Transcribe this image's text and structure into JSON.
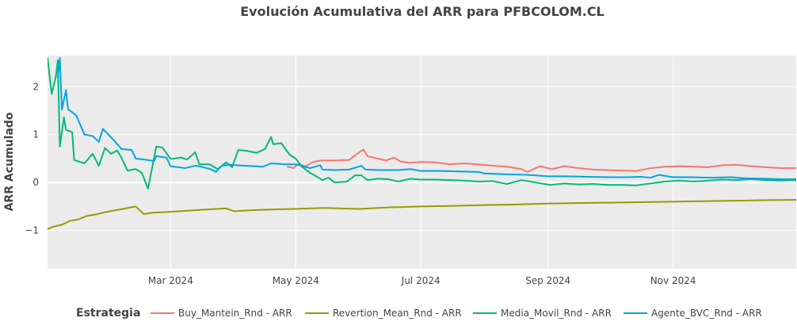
{
  "chart_data": {
    "type": "line",
    "title": "Evolución Acumulativa del ARR para PFBCOLOM.CL",
    "xlabel": "",
    "ylabel": "ARR Acumulado",
    "x_range": [
      "2024-01-01",
      "2024-12-31"
    ],
    "ylim": [
      -1.8,
      2.65
    ],
    "x_ticks": [
      {
        "date": "2024-03-01",
        "label": "Mar 2024"
      },
      {
        "date": "2024-05-01",
        "label": "May 2024"
      },
      {
        "date": "2024-07-01",
        "label": "Jul 2024"
      },
      {
        "date": "2024-09-01",
        "label": "Sep 2024"
      },
      {
        "date": "2024-11-01",
        "label": "Nov 2024"
      }
    ],
    "y_ticks": [
      {
        "value": -1,
        "label": "−1"
      },
      {
        "value": 0,
        "label": "0"
      },
      {
        "value": 1,
        "label": "1"
      },
      {
        "value": 2,
        "label": "2"
      }
    ],
    "grid": true,
    "background": "#ebebeb",
    "legend": {
      "title": "Estrategia",
      "placement": "bottom"
    },
    "series": [
      {
        "name": "Buy_Mantein_Rnd - ARR",
        "color": "#F8766D",
        "points": [
          [
            "2024-04-27",
            0.33
          ],
          [
            "2024-04-30",
            0.3
          ],
          [
            "2024-05-02",
            0.38
          ],
          [
            "2024-05-06",
            0.34
          ],
          [
            "2024-05-09",
            0.42
          ],
          [
            "2024-05-13",
            0.46
          ],
          [
            "2024-05-20",
            0.46
          ],
          [
            "2024-05-27",
            0.47
          ],
          [
            "2024-05-31",
            0.6
          ],
          [
            "2024-06-03",
            0.69
          ],
          [
            "2024-06-05",
            0.55
          ],
          [
            "2024-06-10",
            0.5
          ],
          [
            "2024-06-14",
            0.46
          ],
          [
            "2024-06-18",
            0.52
          ],
          [
            "2024-06-21",
            0.44
          ],
          [
            "2024-06-26",
            0.41
          ],
          [
            "2024-07-01",
            0.43
          ],
          [
            "2024-07-08",
            0.42
          ],
          [
            "2024-07-15",
            0.38
          ],
          [
            "2024-07-22",
            0.4
          ],
          [
            "2024-07-29",
            0.38
          ],
          [
            "2024-08-05",
            0.35
          ],
          [
            "2024-08-12",
            0.33
          ],
          [
            "2024-08-19",
            0.28
          ],
          [
            "2024-08-22",
            0.22
          ],
          [
            "2024-08-28",
            0.34
          ],
          [
            "2024-09-03",
            0.28
          ],
          [
            "2024-09-09",
            0.34
          ],
          [
            "2024-09-16",
            0.3
          ],
          [
            "2024-09-23",
            0.27
          ],
          [
            "2024-09-30",
            0.26
          ],
          [
            "2024-10-07",
            0.25
          ],
          [
            "2024-10-14",
            0.24
          ],
          [
            "2024-10-21",
            0.3
          ],
          [
            "2024-10-28",
            0.33
          ],
          [
            "2024-11-04",
            0.34
          ],
          [
            "2024-11-11",
            0.33
          ],
          [
            "2024-11-18",
            0.32
          ],
          [
            "2024-11-25",
            0.36
          ],
          [
            "2024-12-02",
            0.37
          ],
          [
            "2024-12-09",
            0.34
          ],
          [
            "2024-12-16",
            0.32
          ],
          [
            "2024-12-23",
            0.3
          ],
          [
            "2024-12-31",
            0.3
          ]
        ]
      },
      {
        "name": "Revertion_Mean_Rnd - ARR",
        "color": "#999900",
        "points": [
          [
            "2024-01-01",
            -0.97
          ],
          [
            "2024-01-04",
            -0.92
          ],
          [
            "2024-01-08",
            -0.88
          ],
          [
            "2024-01-12",
            -0.8
          ],
          [
            "2024-01-16",
            -0.77
          ],
          [
            "2024-01-20",
            -0.7
          ],
          [
            "2024-01-25",
            -0.66
          ],
          [
            "2024-01-29",
            -0.62
          ],
          [
            "2024-02-03",
            -0.58
          ],
          [
            "2024-02-08",
            -0.54
          ],
          [
            "2024-02-13",
            -0.5
          ],
          [
            "2024-02-17",
            -0.66
          ],
          [
            "2024-02-21",
            -0.63
          ],
          [
            "2024-02-27",
            -0.62
          ],
          [
            "2024-03-05",
            -0.6
          ],
          [
            "2024-03-12",
            -0.58
          ],
          [
            "2024-03-20",
            -0.56
          ],
          [
            "2024-03-28",
            -0.54
          ],
          [
            "2024-04-01",
            -0.6
          ],
          [
            "2024-04-08",
            -0.58
          ],
          [
            "2024-04-15",
            -0.57
          ],
          [
            "2024-04-22",
            -0.56
          ],
          [
            "2024-05-01",
            -0.55
          ],
          [
            "2024-05-15",
            -0.53
          ],
          [
            "2024-06-01",
            -0.55
          ],
          [
            "2024-06-15",
            -0.52
          ],
          [
            "2024-07-01",
            -0.5
          ],
          [
            "2024-07-15",
            -0.49
          ],
          [
            "2024-08-01",
            -0.47
          ],
          [
            "2024-08-15",
            -0.46
          ],
          [
            "2024-09-01",
            -0.44
          ],
          [
            "2024-09-15",
            -0.43
          ],
          [
            "2024-10-01",
            -0.42
          ],
          [
            "2024-10-15",
            -0.41
          ],
          [
            "2024-11-01",
            -0.4
          ],
          [
            "2024-11-15",
            -0.39
          ],
          [
            "2024-12-01",
            -0.38
          ],
          [
            "2024-12-15",
            -0.37
          ],
          [
            "2024-12-31",
            -0.36
          ]
        ]
      },
      {
        "name": "Media_Movil_Rnd - ARR",
        "color": "#00BA78",
        "points": [
          [
            "2024-01-01",
            2.6
          ],
          [
            "2024-01-03",
            1.85
          ],
          [
            "2024-01-05",
            2.2
          ],
          [
            "2024-01-06",
            2.55
          ],
          [
            "2024-01-07",
            0.75
          ],
          [
            "2024-01-09",
            1.36
          ],
          [
            "2024-01-10",
            1.1
          ],
          [
            "2024-01-13",
            1.05
          ],
          [
            "2024-01-14",
            0.47
          ],
          [
            "2024-01-19",
            0.4
          ],
          [
            "2024-01-23",
            0.6
          ],
          [
            "2024-01-26",
            0.35
          ],
          [
            "2024-01-29",
            0.72
          ],
          [
            "2024-02-01",
            0.6
          ],
          [
            "2024-02-04",
            0.67
          ],
          [
            "2024-02-06",
            0.52
          ],
          [
            "2024-02-09",
            0.25
          ],
          [
            "2024-02-13",
            0.28
          ],
          [
            "2024-02-16",
            0.2
          ],
          [
            "2024-02-19",
            -0.13
          ],
          [
            "2024-02-23",
            0.75
          ],
          [
            "2024-02-26",
            0.73
          ],
          [
            "2024-03-01",
            0.49
          ],
          [
            "2024-03-06",
            0.52
          ],
          [
            "2024-03-09",
            0.48
          ],
          [
            "2024-03-13",
            0.63
          ],
          [
            "2024-03-15",
            0.38
          ],
          [
            "2024-03-20",
            0.38
          ],
          [
            "2024-03-24",
            0.28
          ],
          [
            "2024-03-28",
            0.42
          ],
          [
            "2024-03-31",
            0.32
          ],
          [
            "2024-04-03",
            0.68
          ],
          [
            "2024-04-07",
            0.66
          ],
          [
            "2024-04-12",
            0.62
          ],
          [
            "2024-04-16",
            0.7
          ],
          [
            "2024-04-19",
            0.95
          ],
          [
            "2024-04-20",
            0.8
          ],
          [
            "2024-04-24",
            0.82
          ],
          [
            "2024-04-28",
            0.58
          ],
          [
            "2024-05-01",
            0.5
          ],
          [
            "2024-05-04",
            0.33
          ],
          [
            "2024-05-08",
            0.2
          ],
          [
            "2024-05-11",
            0.13
          ],
          [
            "2024-05-14",
            0.05
          ],
          [
            "2024-05-17",
            0.1
          ],
          [
            "2024-05-20",
            0.0
          ],
          [
            "2024-05-26",
            0.02
          ],
          [
            "2024-05-30",
            0.15
          ],
          [
            "2024-06-02",
            0.15
          ],
          [
            "2024-06-05",
            0.05
          ],
          [
            "2024-06-10",
            0.08
          ],
          [
            "2024-06-15",
            0.07
          ],
          [
            "2024-06-20",
            0.02
          ],
          [
            "2024-06-26",
            0.08
          ],
          [
            "2024-07-01",
            0.06
          ],
          [
            "2024-07-08",
            0.06
          ],
          [
            "2024-07-15",
            0.05
          ],
          [
            "2024-07-22",
            0.04
          ],
          [
            "2024-07-29",
            0.02
          ],
          [
            "2024-08-05",
            0.03
          ],
          [
            "2024-08-12",
            -0.03
          ],
          [
            "2024-08-19",
            0.05
          ],
          [
            "2024-08-26",
            0.0
          ],
          [
            "2024-09-02",
            -0.05
          ],
          [
            "2024-09-09",
            -0.02
          ],
          [
            "2024-09-16",
            -0.04
          ],
          [
            "2024-09-23",
            -0.03
          ],
          [
            "2024-09-30",
            -0.05
          ],
          [
            "2024-10-07",
            -0.05
          ],
          [
            "2024-10-14",
            -0.06
          ],
          [
            "2024-10-21",
            -0.02
          ],
          [
            "2024-10-28",
            0.02
          ],
          [
            "2024-11-04",
            0.04
          ],
          [
            "2024-11-11",
            0.02
          ],
          [
            "2024-11-18",
            0.04
          ],
          [
            "2024-11-25",
            0.06
          ],
          [
            "2024-12-02",
            0.05
          ],
          [
            "2024-12-09",
            0.07
          ],
          [
            "2024-12-16",
            0.05
          ],
          [
            "2024-12-23",
            0.04
          ],
          [
            "2024-12-31",
            0.05
          ]
        ]
      },
      {
        "name": "Agente_BVC_Rnd - ARR",
        "color": "#00A5E3",
        "points": [
          [
            "2024-01-06",
            2.2
          ],
          [
            "2024-01-07",
            2.6
          ],
          [
            "2024-01-08",
            1.52
          ],
          [
            "2024-01-10",
            1.93
          ],
          [
            "2024-01-11",
            1.53
          ],
          [
            "2024-01-15",
            1.4
          ],
          [
            "2024-01-19",
            1.0
          ],
          [
            "2024-01-23",
            0.97
          ],
          [
            "2024-01-26",
            0.85
          ],
          [
            "2024-01-28",
            1.12
          ],
          [
            "2024-02-03",
            0.85
          ],
          [
            "2024-02-06",
            0.7
          ],
          [
            "2024-02-11",
            0.68
          ],
          [
            "2024-02-13",
            0.5
          ],
          [
            "2024-02-17",
            0.48
          ],
          [
            "2024-02-22",
            0.45
          ],
          [
            "2024-02-23",
            0.55
          ],
          [
            "2024-02-28",
            0.52
          ],
          [
            "2024-03-01",
            0.34
          ],
          [
            "2024-03-08",
            0.3
          ],
          [
            "2024-03-13",
            0.35
          ],
          [
            "2024-03-16",
            0.33
          ],
          [
            "2024-03-21",
            0.27
          ],
          [
            "2024-03-23",
            0.22
          ],
          [
            "2024-03-26",
            0.35
          ],
          [
            "2024-03-30",
            0.37
          ],
          [
            "2024-04-06",
            0.35
          ],
          [
            "2024-04-15",
            0.33
          ],
          [
            "2024-04-19",
            0.4
          ],
          [
            "2024-04-26",
            0.38
          ],
          [
            "2024-05-01",
            0.38
          ],
          [
            "2024-05-08",
            0.3
          ],
          [
            "2024-05-13",
            0.36
          ],
          [
            "2024-05-14",
            0.27
          ],
          [
            "2024-05-20",
            0.26
          ],
          [
            "2024-05-27",
            0.27
          ],
          [
            "2024-06-02",
            0.35
          ],
          [
            "2024-06-04",
            0.27
          ],
          [
            "2024-06-11",
            0.26
          ],
          [
            "2024-06-20",
            0.26
          ],
          [
            "2024-06-26",
            0.28
          ],
          [
            "2024-07-01",
            0.24
          ],
          [
            "2024-07-10",
            0.24
          ],
          [
            "2024-07-20",
            0.23
          ],
          [
            "2024-07-29",
            0.22
          ],
          [
            "2024-08-01",
            0.19
          ],
          [
            "2024-08-12",
            0.17
          ],
          [
            "2024-08-22",
            0.16
          ],
          [
            "2024-09-01",
            0.13
          ],
          [
            "2024-09-10",
            0.13
          ],
          [
            "2024-09-20",
            0.12
          ],
          [
            "2024-10-01",
            0.11
          ],
          [
            "2024-10-10",
            0.11
          ],
          [
            "2024-10-16",
            0.12
          ],
          [
            "2024-10-21",
            0.1
          ],
          [
            "2024-10-25",
            0.16
          ],
          [
            "2024-11-01",
            0.11
          ],
          [
            "2024-11-10",
            0.11
          ],
          [
            "2024-11-20",
            0.1
          ],
          [
            "2024-11-29",
            0.11
          ],
          [
            "2024-12-05",
            0.09
          ],
          [
            "2024-12-15",
            0.08
          ],
          [
            "2024-12-24",
            0.07
          ],
          [
            "2024-12-31",
            0.07
          ]
        ]
      }
    ]
  }
}
